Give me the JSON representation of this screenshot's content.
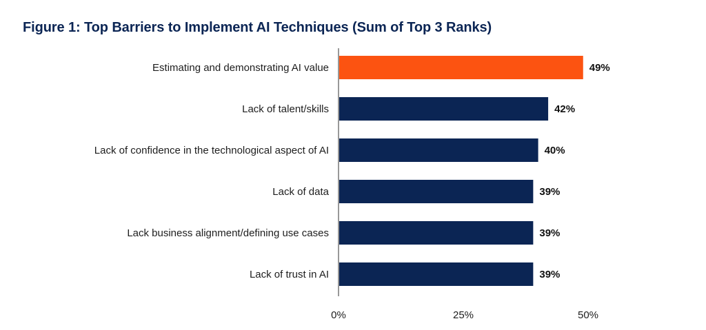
{
  "chart_data": {
    "type": "bar",
    "orientation": "horizontal",
    "title": "Figure 1: Top Barriers to Implement AI Techniques (Sum of Top 3 Ranks)",
    "categories": [
      "Estimating and demonstrating AI value",
      "Lack of talent/skills",
      "Lack of confidence in the technological aspect of AI",
      "Lack of data",
      "Lack business alignment/defining use cases",
      "Lack of trust in AI"
    ],
    "values": [
      49,
      42,
      40,
      39,
      39,
      39
    ],
    "value_labels": [
      "49%",
      "42%",
      "40%",
      "39%",
      "39%",
      "39%"
    ],
    "xlim": [
      0,
      50
    ],
    "xticks": [
      0,
      25,
      50
    ],
    "xtick_labels": [
      "0%",
      "25%",
      "50%"
    ],
    "highlight_index": 0,
    "colors": {
      "highlight": "#fc5311",
      "bar": "#0b2554",
      "axis": "#555555",
      "title": "#0b2554"
    },
    "grid": false,
    "legend": "none"
  }
}
